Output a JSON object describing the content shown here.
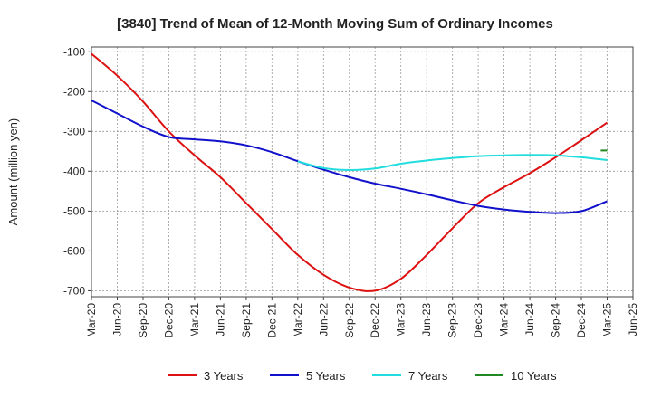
{
  "chart_data": {
    "type": "line",
    "title": "[3840]  Trend of Mean of 12-Month Moving Sum of Ordinary Incomes",
    "xlabel": "",
    "ylabel": "Amount (million yen)",
    "ylim": [
      -715,
      -88
    ],
    "yticks": [
      -100,
      -200,
      -300,
      -400,
      -500,
      -600,
      -700
    ],
    "xticks": [
      "Mar-20",
      "Jun-20",
      "Sep-20",
      "Dec-20",
      "Mar-21",
      "Jun-21",
      "Sep-21",
      "Dec-21",
      "Mar-22",
      "Jun-22",
      "Sep-22",
      "Dec-22",
      "Mar-23",
      "Jun-23",
      "Sep-23",
      "Dec-23",
      "Mar-24",
      "Jun-24",
      "Sep-24",
      "Dec-24",
      "Mar-25",
      "Jun-25"
    ],
    "grid": true,
    "legend_position": "bottom",
    "series": [
      {
        "name": "3 Years",
        "color": "#dd1111",
        "x_start": 0,
        "values": [
          -105,
          -160,
          -225,
          -300,
          -360,
          -415,
          -480,
          -545,
          -610,
          -660,
          -692,
          -700,
          -670,
          -610,
          -543,
          -480,
          -440,
          -405,
          -365,
          -322,
          -278
        ]
      },
      {
        "name": "5 Years",
        "color": "#1111cc",
        "x_start": 0,
        "values": [
          -222,
          -255,
          -288,
          -314,
          -320,
          -325,
          -335,
          -352,
          -375,
          -396,
          -415,
          -431,
          -444,
          -458,
          -473,
          -487,
          -496,
          -502,
          -505,
          -500,
          -475
        ]
      },
      {
        "name": "7 Years",
        "color": "#22dddd",
        "x_start": 8,
        "values": [
          -375,
          -392,
          -397,
          -393,
          -381,
          -373,
          -367,
          -362,
          -360,
          -359,
          -360,
          -365,
          -372
        ]
      },
      {
        "name": "10 Years",
        "color": "#228822",
        "x_start": 19.75,
        "values": [
          -348,
          -348
        ]
      }
    ]
  }
}
